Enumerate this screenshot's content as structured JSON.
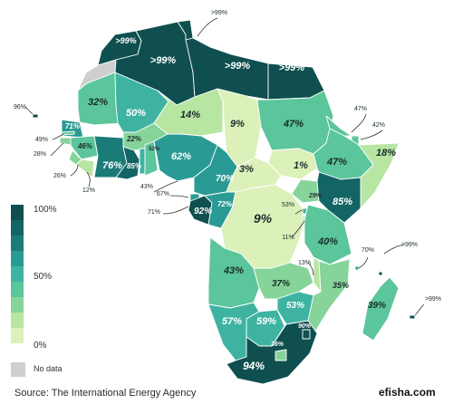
{
  "legend": {
    "max_label": "100%",
    "mid_label": "50%",
    "min_label": "0%",
    "no_data_label": "No data",
    "scale_colors": [
      "#0f4f4f",
      "#136565",
      "#1b7b77",
      "#2a9a94",
      "#3fb3a2",
      "#5bc59b",
      "#86d49a",
      "#b7e5a2",
      "#dcf0b9"
    ]
  },
  "source": "Source: The International Energy Agency",
  "brand": "efisha.com",
  "colors": {
    "no_data": "#cfcfcf",
    "border": "#ffffff",
    "label_dark": "#1b2b2b"
  },
  "countries": [
    {
      "id": "morocco",
      "value": ">99%",
      "color": "#0f4f4f"
    },
    {
      "id": "western-sahara",
      "value": "",
      "color": "#cfcfcf"
    },
    {
      "id": "algeria",
      "value": ">99%",
      "color": "#0f4f4f"
    },
    {
      "id": "tunisia",
      "value": ">99%",
      "color": "#0f4f4f"
    },
    {
      "id": "libya",
      "value": ">99%",
      "color": "#0f4f4f"
    },
    {
      "id": "egypt",
      "value": ">99%",
      "color": "#0f4f4f"
    },
    {
      "id": "mauritania",
      "value": "32%",
      "color": "#5bc59b"
    },
    {
      "id": "mali",
      "value": "50%",
      "color": "#3fb3a2"
    },
    {
      "id": "niger",
      "value": "14%",
      "color": "#b7e5a2"
    },
    {
      "id": "chad",
      "value": "9%",
      "color": "#dcf0b9"
    },
    {
      "id": "sudan",
      "value": "47%",
      "color": "#5bc59b"
    },
    {
      "id": "south-sudan",
      "value": "1%",
      "color": "#dcf0b9"
    },
    {
      "id": "eritrea",
      "value": "47%",
      "color": "#5bc59b"
    },
    {
      "id": "djibouti",
      "value": "42%",
      "color": "#5bc59b"
    },
    {
      "id": "ethiopia",
      "value": "47%",
      "color": "#5bc59b"
    },
    {
      "id": "somalia",
      "value": "18%",
      "color": "#b7e5a2"
    },
    {
      "id": "senegal",
      "value": "71%",
      "color": "#2a9a94"
    },
    {
      "id": "gambia",
      "value": "49%",
      "color": "#5bc59b"
    },
    {
      "id": "guinea-bissau",
      "value": "28%",
      "color": "#86d49a"
    },
    {
      "id": "guinea",
      "value": "46%",
      "color": "#5bc59b"
    },
    {
      "id": "sierra-leone",
      "value": "26%",
      "color": "#86d49a"
    },
    {
      "id": "liberia",
      "value": "12%",
      "color": "#b7e5a2"
    },
    {
      "id": "burkina-faso",
      "value": "22%",
      "color": "#86d49a"
    },
    {
      "id": "ivory-coast",
      "value": "76%",
      "color": "#1b7b77"
    },
    {
      "id": "ghana",
      "value": "85%",
      "color": "#136565"
    },
    {
      "id": "togo",
      "value": "52%",
      "color": "#3fb3a2"
    },
    {
      "id": "benin",
      "value": "43%",
      "color": "#5bc59b"
    },
    {
      "id": "nigeria",
      "value": "62%",
      "color": "#2a9a94"
    },
    {
      "id": "cameroon",
      "value": "70%",
      "color": "#2a9a94"
    },
    {
      "id": "car",
      "value": "3%",
      "color": "#dcf0b9"
    },
    {
      "id": "equatorial-guinea",
      "value": "67%",
      "color": "#2a9a94"
    },
    {
      "id": "sao-tome",
      "value": "71%",
      "color": "#2a9a94"
    },
    {
      "id": "gabon",
      "value": "92%",
      "color": "#0f4f4f"
    },
    {
      "id": "congo",
      "value": "72%",
      "color": "#2a9a94"
    },
    {
      "id": "drc",
      "value": "9%",
      "color": "#dcf0b9"
    },
    {
      "id": "uganda",
      "value": "29%",
      "color": "#86d49a"
    },
    {
      "id": "kenya",
      "value": "85%",
      "color": "#136565"
    },
    {
      "id": "rwanda",
      "value": "53%",
      "color": "#3fb3a2"
    },
    {
      "id": "burundi",
      "value": "11%",
      "color": "#b7e5a2"
    },
    {
      "id": "tanzania",
      "value": "40%",
      "color": "#5bc59b"
    },
    {
      "id": "seychelles",
      "value": ">99%",
      "color": "#0f4f4f"
    },
    {
      "id": "comoros",
      "value": "70%",
      "color": "#2a9a94"
    },
    {
      "id": "angola",
      "value": "43%",
      "color": "#5bc59b"
    },
    {
      "id": "zambia",
      "value": "37%",
      "color": "#86d49a"
    },
    {
      "id": "malawi",
      "value": "13%",
      "color": "#b7e5a2"
    },
    {
      "id": "mozambique",
      "value": "35%",
      "color": "#86d49a"
    },
    {
      "id": "madagascar",
      "value": "39%",
      "color": "#5bc59b"
    },
    {
      "id": "mauritius",
      "value": ">99%",
      "color": "#0f4f4f"
    },
    {
      "id": "namibia",
      "value": "57%",
      "color": "#3fb3a2"
    },
    {
      "id": "botswana",
      "value": "59%",
      "color": "#3fb3a2"
    },
    {
      "id": "zimbabwe",
      "value": "53%",
      "color": "#3fb3a2"
    },
    {
      "id": "south-africa",
      "value": "94%",
      "color": "#0f4f4f"
    },
    {
      "id": "eswatini",
      "value": "90%",
      "color": "#0f4f4f"
    },
    {
      "id": "lesotho",
      "value": "36%",
      "color": "#86d49a"
    },
    {
      "id": "cape-verde",
      "value": "96%",
      "color": "#0f4f4f"
    }
  ]
}
